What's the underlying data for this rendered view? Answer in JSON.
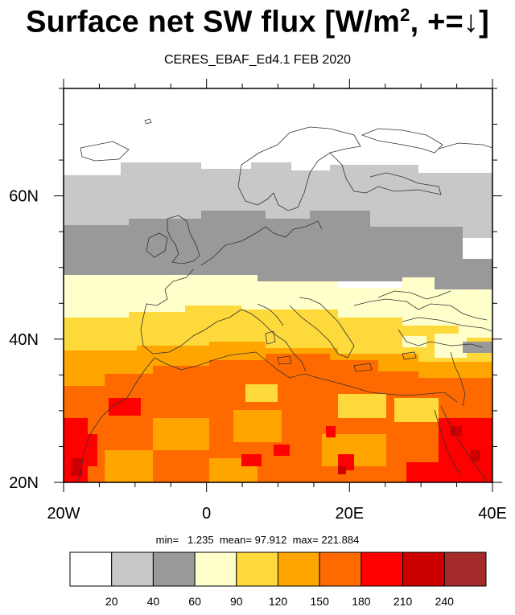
{
  "title": {
    "main": "Surface net SW flux [W/m",
    "sup": "2",
    "tail": ", +=↓]"
  },
  "subtitle": "CERES_EBAF_Ed4.1 FEB 2020",
  "map": {
    "lon_range": [
      -20,
      40
    ],
    "lat_range": [
      20,
      75
    ],
    "x_ticks": [
      "20W",
      "0",
      "20E",
      "40E"
    ],
    "y_ticks": [
      "20N",
      "40N",
      "60N"
    ],
    "band_colors": {
      "lat_60_75": "#ffffff",
      "lat_55_65": "#c8c8c8",
      "lat_48_56": "#999999",
      "lat_42_49": "#ffffcc",
      "lat_38_42": "#fed93b",
      "lat_30_38": "#ffa500",
      "lat_20_30": "#ff6a00"
    }
  },
  "stats": {
    "min_label": "min=",
    "min": "1.235",
    "mean_label": "mean=",
    "mean": "97.912",
    "max_label": "max=",
    "max": "221.884"
  },
  "colorbar": {
    "colors": [
      "#ffffff",
      "#c8c8c8",
      "#999999",
      "#ffffcc",
      "#fed93b",
      "#ffa500",
      "#ff6a00",
      "#ff0000",
      "#cc0000",
      "#a52a2a"
    ],
    "labels": [
      "20",
      "40",
      "60",
      "90",
      "120",
      "150",
      "180",
      "210",
      "240"
    ]
  }
}
